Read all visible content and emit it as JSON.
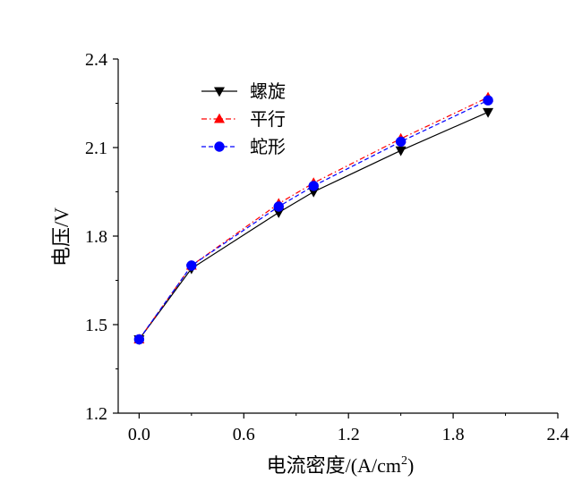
{
  "chart_data": {
    "type": "line",
    "title": "",
    "xlabel": "电流密度/(A/cm",
    "xlabel_sup": "2",
    "xlabel_close": ")",
    "ylabel": "电压/V",
    "xlim": [
      -0.12,
      2.4
    ],
    "ylim": [
      1.2,
      2.4
    ],
    "xticks": [
      "0.0",
      "0.6",
      "1.2",
      "1.8",
      "2.4"
    ],
    "yticks": [
      "1.2",
      "1.5",
      "1.8",
      "2.1",
      "2.4"
    ],
    "grid": false,
    "legend_position": "top-left",
    "series": [
      {
        "name": "螺旋",
        "color": "#000000",
        "marker": "triangle-down",
        "dash": "solid",
        "x": [
          0.0,
          0.3,
          0.8,
          1.0,
          1.5,
          2.0
        ],
        "y": [
          1.45,
          1.69,
          1.88,
          1.95,
          2.09,
          2.22
        ]
      },
      {
        "name": "平行",
        "color": "#ff0000",
        "marker": "triangle-up",
        "dash": "dashdot",
        "x": [
          0.0,
          0.3,
          0.8,
          1.0,
          1.5,
          2.0
        ],
        "y": [
          1.45,
          1.7,
          1.91,
          1.98,
          2.13,
          2.27
        ]
      },
      {
        "name": "蛇形",
        "color": "#0000ff",
        "marker": "circle",
        "dash": "dashed",
        "x": [
          0.0,
          0.3,
          0.8,
          1.0,
          1.5,
          2.0
        ],
        "y": [
          1.45,
          1.7,
          1.9,
          1.97,
          2.12,
          2.26
        ]
      }
    ]
  }
}
